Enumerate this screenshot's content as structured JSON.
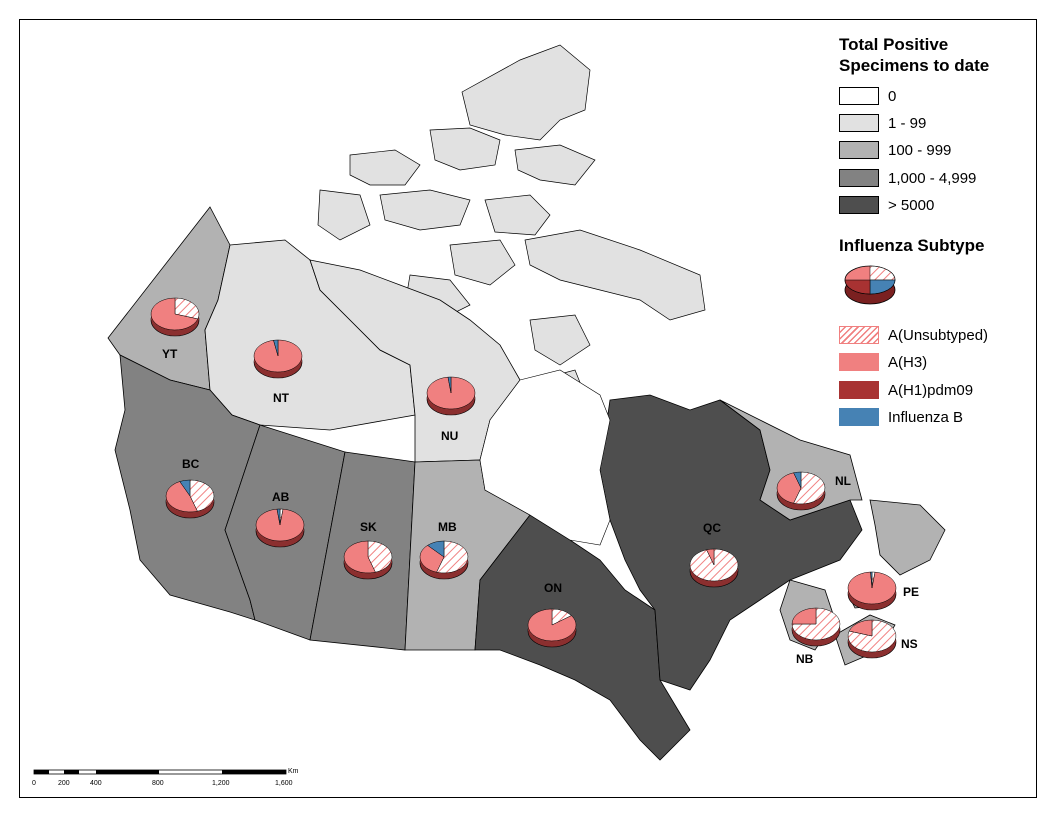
{
  "legend": {
    "specimens_title_line1": "Total Positive",
    "specimens_title_line2": "Specimens to date",
    "classes": [
      {
        "label": "0",
        "color": "#ffffff"
      },
      {
        "label": "1 - 99",
        "color": "#e1e1e1"
      },
      {
        "label": "100 - 999",
        "color": "#b2b2b2"
      },
      {
        "label": "1,000 - 4,999",
        "color": "#828282"
      },
      {
        "label": "> 5000",
        "color": "#4e4e4e"
      }
    ],
    "subtype_title": "Influenza Subtype",
    "subtypes": [
      {
        "label": "A(Unsubtyped)",
        "color": "#f08080",
        "pattern": "hatch"
      },
      {
        "label": "A(H3)",
        "color": "#f08080"
      },
      {
        "label": "A(H1)pdm09",
        "color": "#a83232"
      },
      {
        "label": "Influenza B",
        "color": "#4682b4"
      }
    ]
  },
  "provinces": [
    {
      "code": "YT",
      "class": "100 - 999"
    },
    {
      "code": "NT",
      "class": "1 - 99"
    },
    {
      "code": "NU",
      "class": "1 - 99"
    },
    {
      "code": "BC",
      "class": "1,000 - 4,999"
    },
    {
      "code": "AB",
      "class": "1,000 - 4,999"
    },
    {
      "code": "SK",
      "class": "1,000 - 4,999"
    },
    {
      "code": "MB",
      "class": "100 - 999"
    },
    {
      "code": "ON",
      "class": "> 5000"
    },
    {
      "code": "QC",
      "class": "> 5000"
    },
    {
      "code": "NL",
      "class": "100 - 999"
    },
    {
      "code": "NB",
      "class": "100 - 999"
    },
    {
      "code": "NS",
      "class": "100 - 999"
    },
    {
      "code": "PE",
      "class": "100 - 999"
    }
  ],
  "scale_bar": {
    "unit": "Km",
    "ticks": [
      "0",
      "200",
      "400",
      "800",
      "1,200",
      "1,600"
    ]
  }
}
